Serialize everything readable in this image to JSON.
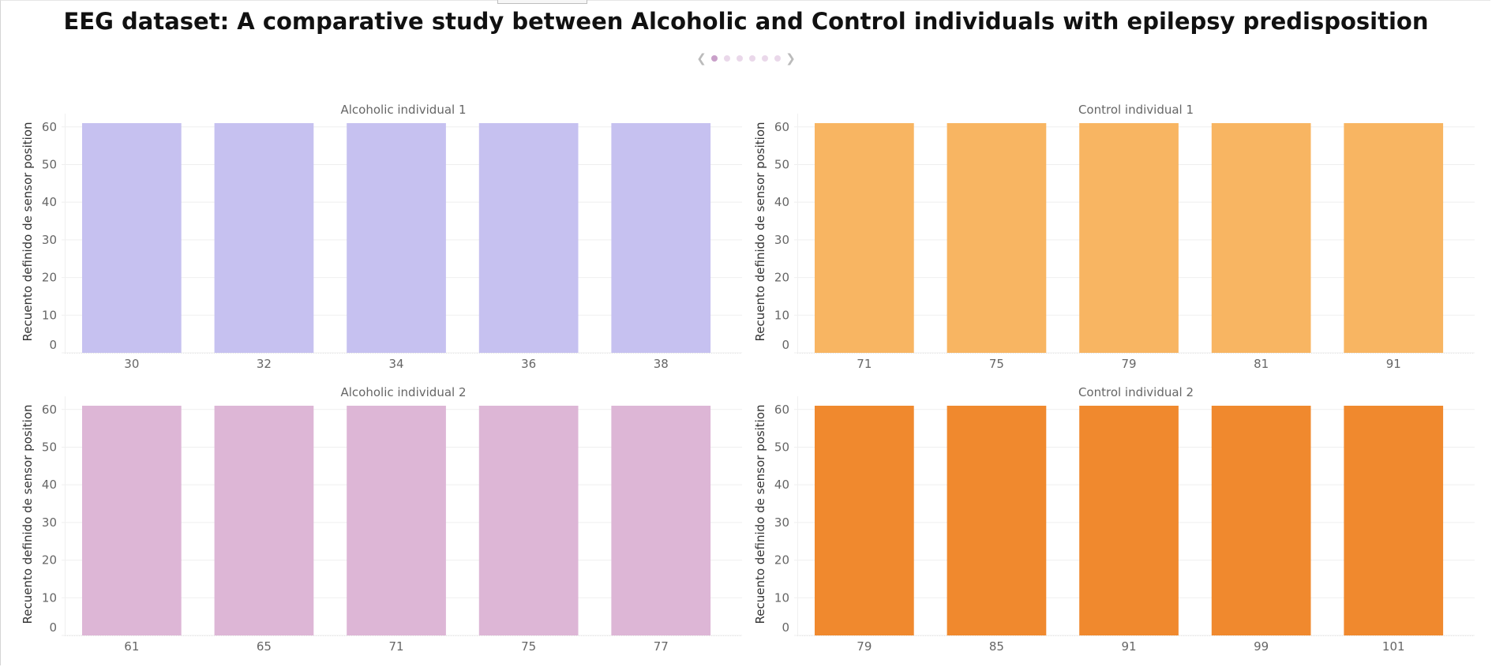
{
  "page": {
    "title": "EEG dataset: A comparative study between Alcoholic and Control individuals with epilepsy predisposition"
  },
  "pager": {
    "prev_icon": "chevron-left-icon",
    "next_icon": "chevron-right-icon",
    "dot_count": 6,
    "active_index": 1,
    "active_color": "#c9a0c9",
    "inactive_color": "#ead8ea"
  },
  "chart_data": [
    {
      "type": "bar",
      "title": "Alcoholic individual 1",
      "ylabel": "Recuento definido de sensor position",
      "xlabel": "",
      "categories": [
        "30",
        "32",
        "34",
        "36",
        "38"
      ],
      "values": [
        61,
        61,
        61,
        61,
        61
      ],
      "yticks": [
        0,
        10,
        20,
        30,
        40,
        50,
        60
      ],
      "ylim": [
        0,
        61
      ],
      "grid": true,
      "color": "#c6c1f0"
    },
    {
      "type": "bar",
      "title": "Control individual 1",
      "ylabel": "Recuento definido de sensor position",
      "xlabel": "",
      "categories": [
        "71",
        "75",
        "79",
        "81",
        "91"
      ],
      "values": [
        61,
        61,
        61,
        61,
        61
      ],
      "yticks": [
        0,
        10,
        20,
        30,
        40,
        50,
        60
      ],
      "ylim": [
        0,
        61
      ],
      "grid": true,
      "color": "#f8b562"
    },
    {
      "type": "bar",
      "title": "Alcoholic individual 2",
      "ylabel": "Recuento definido de sensor position",
      "xlabel": "",
      "categories": [
        "61",
        "65",
        "71",
        "75",
        "77"
      ],
      "values": [
        61,
        61,
        61,
        61,
        61
      ],
      "yticks": [
        0,
        10,
        20,
        30,
        40,
        50,
        60
      ],
      "ylim": [
        0,
        61
      ],
      "grid": true,
      "color": "#ddb6d6"
    },
    {
      "type": "bar",
      "title": "Control individual 2",
      "ylabel": "Recuento definido de sensor position",
      "xlabel": "",
      "categories": [
        "79",
        "85",
        "91",
        "99",
        "101"
      ],
      "values": [
        61,
        61,
        61,
        61,
        61
      ],
      "yticks": [
        0,
        10,
        20,
        30,
        40,
        50,
        60
      ],
      "ylim": [
        0,
        61
      ],
      "grid": true,
      "color": "#f0892e"
    }
  ]
}
